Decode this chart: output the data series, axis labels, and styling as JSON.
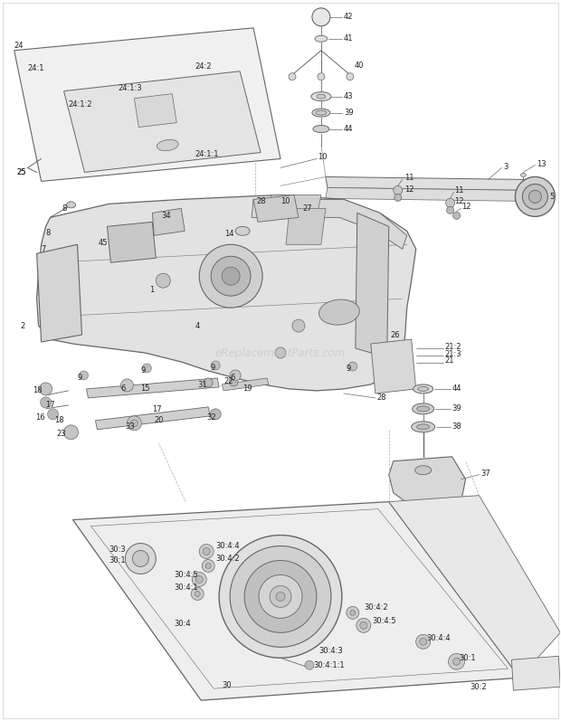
{
  "bg_color": "#ffffff",
  "fig_width": 6.2,
  "fig_height": 7.97,
  "watermark": "eReplacementParts.com",
  "line_color": "#666666",
  "label_color": "#222222",
  "label_fontsize": 6.0,
  "border_color": "#aaaaaa"
}
